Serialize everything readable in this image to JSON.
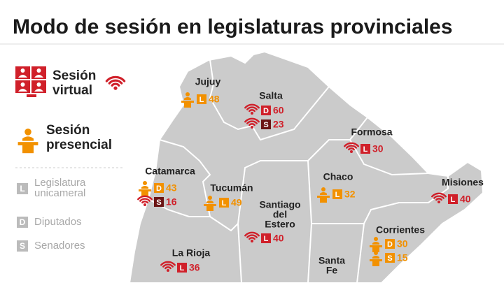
{
  "header": {
    "title": "Modo de sesión en legislaturas provinciales"
  },
  "legend": {
    "modes": [
      {
        "mode": "virtual",
        "lines": [
          "Sesión",
          "virtual"
        ]
      },
      {
        "mode": "presencial",
        "lines": [
          "Sesión",
          "presencial"
        ]
      }
    ],
    "chambers": [
      {
        "code": "L",
        "lines": [
          "Legislatura",
          "unicameral"
        ]
      },
      {
        "code": "D",
        "lines": [
          "Diputados"
        ]
      },
      {
        "code": "S",
        "lines": [
          "Senadores"
        ]
      }
    ]
  },
  "provinces": [
    {
      "lines": [
        "Jujuy"
      ],
      "entries": [
        {
          "mode": "presencial",
          "chamber": "L",
          "number": 48
        }
      ]
    },
    {
      "lines": [
        "Salta"
      ],
      "entries": [
        {
          "mode": "virtual",
          "chamber": "D",
          "number": 60
        },
        {
          "mode": "virtual",
          "chamber": "S",
          "number": 23
        }
      ]
    },
    {
      "lines": [
        "Formosa"
      ],
      "entries": [
        {
          "mode": "virtual",
          "chamber": "L",
          "number": 30
        }
      ]
    },
    {
      "lines": [
        "Catamarca"
      ],
      "entries": [
        {
          "mode": "presencial",
          "chamber": "D",
          "number": 43
        },
        {
          "mode": "virtual",
          "chamber": "S",
          "number": 16
        }
      ]
    },
    {
      "lines": [
        "Tucumán"
      ],
      "entries": [
        {
          "mode": "presencial",
          "chamber": "L",
          "number": 49
        }
      ]
    },
    {
      "lines": [
        "Chaco"
      ],
      "entries": [
        {
          "mode": "presencial",
          "chamber": "L",
          "number": 32
        }
      ]
    },
    {
      "lines": [
        "Misiones"
      ],
      "entries": [
        {
          "mode": "virtual",
          "chamber": "L",
          "number": 40
        }
      ]
    },
    {
      "lines": [
        "Santiago",
        "del",
        "Estero"
      ],
      "entries": [
        {
          "mode": "virtual",
          "chamber": "L",
          "number": 40
        }
      ]
    },
    {
      "lines": [
        "Corrientes"
      ],
      "entries": [
        {
          "mode": "presencial",
          "chamber": "D",
          "number": 30
        },
        {
          "mode": "presencial",
          "chamber": "S",
          "number": 15
        }
      ]
    },
    {
      "lines": [
        "La Rioja"
      ],
      "entries": [
        {
          "mode": "virtual",
          "chamber": "L",
          "number": 36
        }
      ]
    },
    {
      "lines": [
        "Santa",
        "Fe"
      ],
      "entries": []
    }
  ]
}
